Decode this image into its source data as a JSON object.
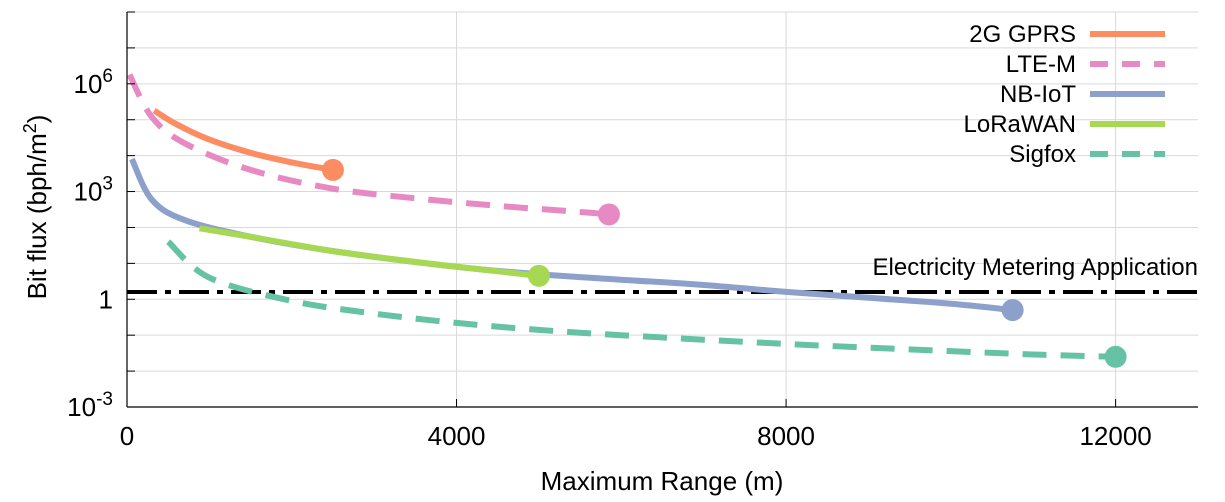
{
  "chart_data": {
    "type": "line",
    "title": "",
    "xlabel": "Maximum Range (m)",
    "ylabel": "Bit flux (bph/m²)",
    "x_scale": "linear",
    "y_scale": "log",
    "xlim": [
      0,
      13000
    ],
    "ylim": [
      0.001,
      100000000
    ],
    "grid": true,
    "legend_position": "top-right",
    "x_ticks": [
      {
        "value": 0,
        "label": "0"
      },
      {
        "value": 4000,
        "label": "4000"
      },
      {
        "value": 8000,
        "label": "8000"
      },
      {
        "value": 12000,
        "label": "12000"
      }
    ],
    "y_ticks": [
      {
        "value": 0.001,
        "base": "10",
        "exp": "-3"
      },
      {
        "value": 1,
        "base": "1",
        "exp": ""
      },
      {
        "value": 1000,
        "base": "10",
        "exp": "3"
      },
      {
        "value": 1000000,
        "base": "10",
        "exp": "6"
      }
    ],
    "series": [
      {
        "name": "2G GPRS",
        "color": "#fc8d62",
        "dash": "solid",
        "x": [
          330,
          600,
          1000,
          1500,
          2000,
          2500
        ],
        "y": [
          180000,
          75000,
          28000,
          12000,
          6500,
          4000
        ],
        "endpoint": {
          "x": 2500,
          "y": 4000
        }
      },
      {
        "name": "LTE-M",
        "color": "#e78ac3",
        "dash": "dashed",
        "x": [
          30,
          300,
          700,
          1500,
          2500,
          3500,
          4500,
          5500,
          5850
        ],
        "y": [
          1800000,
          120000,
          22000,
          4000,
          1200,
          650,
          400,
          270,
          230
        ],
        "endpoint": {
          "x": 5850,
          "y": 230
        }
      },
      {
        "name": "NB-IoT",
        "color": "#8da0cb",
        "dash": "solid",
        "x": [
          60,
          300,
          700,
          1500,
          2500,
          4000,
          5000,
          6000,
          7000,
          8000,
          9000,
          10000,
          10750
        ],
        "y": [
          8000,
          600,
          160,
          55,
          22,
          8,
          5,
          3.5,
          2.5,
          1.6,
          1.1,
          0.75,
          0.5
        ],
        "endpoint": {
          "x": 10750,
          "y": 0.5
        }
      },
      {
        "name": "LoRaWAN",
        "color": "#a6d854",
        "dash": "solid",
        "x": [
          880,
          1500,
          2500,
          3500,
          4500,
          5000
        ],
        "y": [
          95,
          55,
          22,
          11,
          6,
          4.5
        ],
        "endpoint": {
          "x": 5000,
          "y": 4.5
        }
      },
      {
        "name": "Sigfox",
        "color": "#66c2a5",
        "dash": "dashed",
        "x": [
          500,
          1000,
          2000,
          3000,
          4000,
          5000,
          6000,
          7000,
          8000,
          9000,
          10000,
          11000,
          12000
        ],
        "y": [
          40,
          4,
          0.9,
          0.4,
          0.22,
          0.14,
          0.1,
          0.075,
          0.057,
          0.045,
          0.036,
          0.029,
          0.025
        ],
        "endpoint": {
          "x": 12000,
          "y": 0.025
        }
      }
    ],
    "reference_line": {
      "label": "Electricity Metering Application",
      "y": 1.6,
      "color": "#000000",
      "dash": "dash-dot"
    }
  }
}
